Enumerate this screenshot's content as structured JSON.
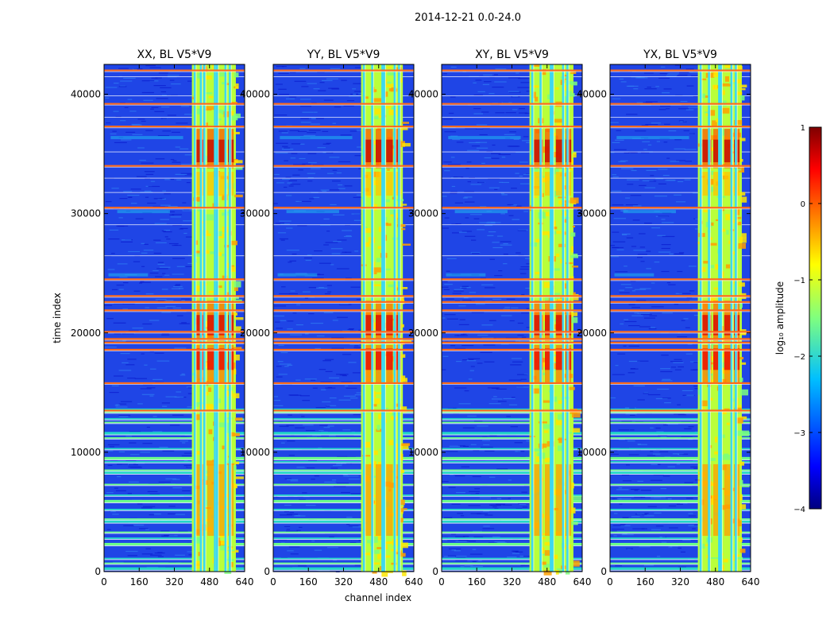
{
  "chart_data": {
    "type": "heatmap",
    "suptitle": "2014-12-21 0.0-24.0",
    "xlabel": "channel index",
    "ylabel": "time index",
    "xlim": [
      0,
      640
    ],
    "ylim": [
      0,
      42500
    ],
    "x_ticks": [
      0,
      160,
      320,
      480,
      640
    ],
    "y_ticks": [
      0,
      10000,
      20000,
      30000,
      40000
    ],
    "panels": [
      {
        "title": "XX, BL V5*V9",
        "band": [
          400,
          600
        ],
        "stripes": [
          408,
          436,
          452,
          500,
          510,
          548,
          568
        ]
      },
      {
        "title": "YY, BL V5*V9",
        "band": [
          400,
          590
        ],
        "stripes": [
          408,
          446,
          492,
          500,
          548,
          568
        ]
      },
      {
        "title": "XY, BL V5*V9",
        "band": [
          400,
          600
        ],
        "stripes": [
          408,
          446,
          492,
          500,
          548,
          568
        ]
      },
      {
        "title": "YX, BL V5*V9",
        "band": [
          400,
          600
        ],
        "stripes": [
          408,
          446,
          492,
          500,
          548,
          568
        ]
      }
    ],
    "strong_rows": [
      250,
      700,
      1100,
      2300,
      2800,
      3300,
      4200,
      4400,
      5200,
      5900,
      6400,
      7300,
      8300,
      8500,
      9200,
      9500,
      10300,
      11200,
      11600,
      12500,
      12800,
      13400,
      13600
    ],
    "orange_rows": [
      13500,
      15800,
      18600,
      19200,
      19500,
      20100,
      21900,
      22600,
      23100,
      24500,
      30500,
      34000,
      37300,
      39200,
      42000
    ],
    "colorbar": {
      "label": "log₁₀ amplitude",
      "range": [
        -4,
        1
      ],
      "ticks": [
        1,
        0,
        -1,
        -2,
        -3,
        -4
      ],
      "tick_labels": [
        "1",
        "0",
        "−1",
        "−2",
        "−3",
        "−4"
      ]
    }
  }
}
